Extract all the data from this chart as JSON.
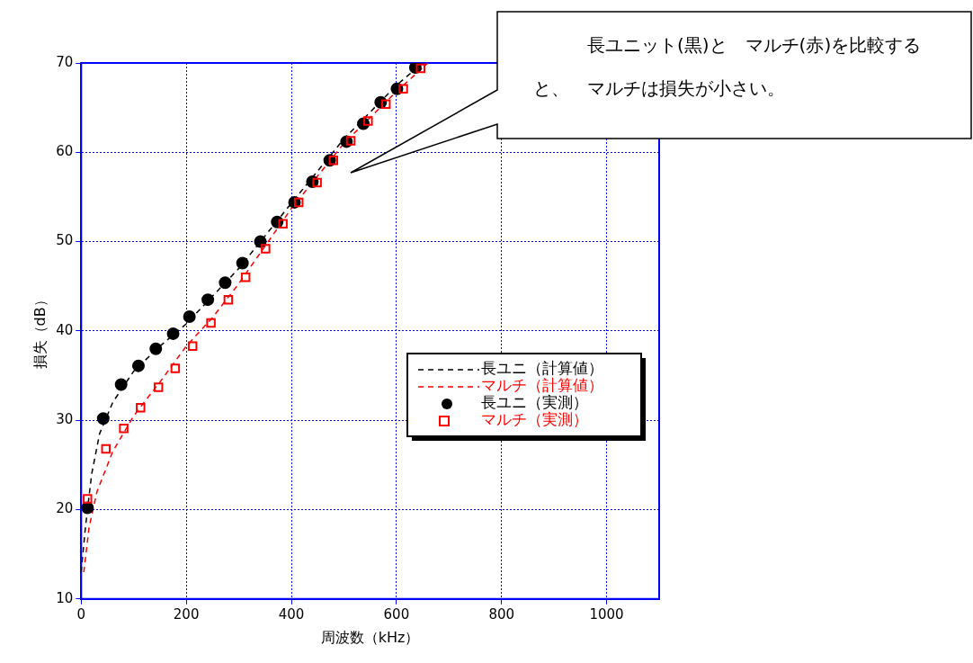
{
  "chart_data": {
    "type": "line",
    "xlabel": "周波数（kHz）",
    "ylabel": "損失（dB）",
    "xlim": [
      0,
      1100
    ],
    "ylim": [
      10,
      70
    ],
    "xticks": [
      0,
      200,
      400,
      600,
      800,
      1000
    ],
    "yticks": [
      10,
      20,
      30,
      40,
      50,
      60,
      70
    ],
    "grid": true,
    "legend": "right",
    "annotations": [
      "長ユニット(黒)と　マルチ(赤)を比較すると、　マルチは損失が小さい。"
    ],
    "series": [
      {
        "name": "長ユニ（計算値）",
        "type": "line",
        "line_style": "dashed",
        "marker": "none",
        "color": "#000000",
        "x": [
          0,
          8,
          20,
          35,
          60,
          100,
          150,
          200,
          300,
          400,
          500,
          600,
          650
        ],
        "values": [
          13,
          18,
          24,
          28.5,
          32,
          35.5,
          38.3,
          40.8,
          47,
          54.3,
          61.5,
          67.5,
          70
        ]
      },
      {
        "name": "マルチ（計算値）",
        "type": "line",
        "line_style": "dashed",
        "marker": "none",
        "color": "#ff0000",
        "x": [
          5,
          15,
          30,
          60,
          100,
          150,
          200,
          250,
          300,
          400,
          500,
          600,
          660
        ],
        "values": [
          13,
          18,
          22,
          26.5,
          30.5,
          34.3,
          38.3,
          41.5,
          45.3,
          53.7,
          61,
          66.8,
          70
        ]
      },
      {
        "name": "長ユニ（実測）",
        "type": "scatter",
        "marker": "circle",
        "color": "#000000",
        "x": [
          12,
          42,
          76,
          109,
          142,
          175,
          206,
          241,
          274,
          307,
          341,
          373,
          406,
          440,
          473,
          505,
          537,
          570,
          601,
          636
        ],
        "values": [
          20.2,
          30.2,
          34,
          36.1,
          38,
          39.7,
          41.6,
          43.5,
          45.4,
          47.6,
          50,
          52.2,
          54.4,
          56.7,
          59.1,
          61.2,
          63.2,
          65.6,
          67.1,
          69.5
        ]
      },
      {
        "name": "マルチ（実測）",
        "type": "scatter",
        "marker": "square",
        "color": "#ff0000",
        "x": [
          12,
          47,
          81,
          113,
          147,
          179,
          212,
          247,
          280,
          313,
          351,
          384,
          414,
          449,
          480,
          513,
          546,
          580,
          613,
          646
        ],
        "values": [
          21.2,
          26.8,
          29.1,
          31.4,
          33.7,
          35.8,
          38.3,
          40.9,
          43.5,
          46,
          49.2,
          52,
          54.4,
          56.6,
          59.1,
          61.3,
          63.5,
          65.4,
          67.1,
          69.4
        ]
      }
    ]
  }
}
